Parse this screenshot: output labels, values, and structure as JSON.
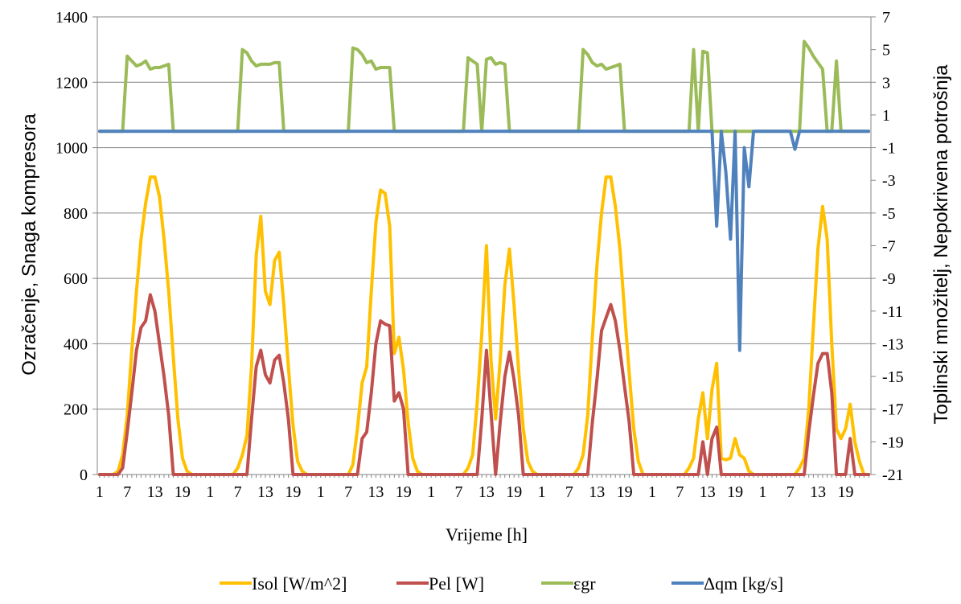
{
  "chart_data": {
    "type": "line",
    "xlabel": "Vrijeme [h]",
    "ylabel_left": "Ozračenje, Snaga kompresora",
    "ylabel_right": "Toplinski množitelj, Nepokrivena potrošnja",
    "ylim_left": [
      0,
      1400
    ],
    "yticks_left": [
      0,
      200,
      400,
      600,
      800,
      1000,
      1200,
      1400
    ],
    "ylim_right": [
      -21,
      7
    ],
    "yticks_right": [
      -21,
      -19,
      -17,
      -15,
      -13,
      -11,
      -9,
      -7,
      -5,
      -3,
      -1,
      1,
      3,
      5,
      7
    ],
    "xtick_labels": [
      "1",
      "7",
      "13",
      "19",
      "1",
      "7",
      "13",
      "19",
      "1",
      "7",
      "13",
      "19",
      "1",
      "7",
      "13",
      "19",
      "1",
      "7",
      "13",
      "19",
      "1",
      "7",
      "13",
      "19",
      "1",
      "7",
      "13",
      "19"
    ],
    "x_hours": 168,
    "grid": "horizontal",
    "legend_position": "bottom",
    "series": [
      {
        "name": "Isol [W/m^2]",
        "color": "#FFC000",
        "axis": "left",
        "points": [
          [
            1,
            0
          ],
          [
            4,
            0
          ],
          [
            5,
            10
          ],
          [
            6,
            60
          ],
          [
            7,
            180
          ],
          [
            8,
            380
          ],
          [
            9,
            560
          ],
          [
            10,
            720
          ],
          [
            11,
            830
          ],
          [
            12,
            910
          ],
          [
            13,
            910
          ],
          [
            14,
            850
          ],
          [
            15,
            720
          ],
          [
            16,
            560
          ],
          [
            17,
            360
          ],
          [
            18,
            170
          ],
          [
            19,
            50
          ],
          [
            20,
            10
          ],
          [
            21,
            0
          ],
          [
            30,
            0
          ],
          [
            31,
            20
          ],
          [
            32,
            60
          ],
          [
            33,
            120
          ],
          [
            34,
            330
          ],
          [
            35,
            670
          ],
          [
            36,
            790
          ],
          [
            37,
            560
          ],
          [
            38,
            520
          ],
          [
            39,
            655
          ],
          [
            40,
            680
          ],
          [
            41,
            520
          ],
          [
            42,
            330
          ],
          [
            43,
            150
          ],
          [
            44,
            40
          ],
          [
            45,
            10
          ],
          [
            46,
            0
          ],
          [
            55,
            0
          ],
          [
            56,
            30
          ],
          [
            57,
            140
          ],
          [
            58,
            280
          ],
          [
            59,
            330
          ],
          [
            60,
            560
          ],
          [
            61,
            770
          ],
          [
            62,
            870
          ],
          [
            63,
            860
          ],
          [
            64,
            760
          ],
          [
            65,
            370
          ],
          [
            66,
            420
          ],
          [
            67,
            320
          ],
          [
            68,
            160
          ],
          [
            69,
            50
          ],
          [
            70,
            10
          ],
          [
            71,
            0
          ],
          [
            80,
            0
          ],
          [
            81,
            20
          ],
          [
            82,
            60
          ],
          [
            83,
            220
          ],
          [
            84,
            430
          ],
          [
            85,
            700
          ],
          [
            86,
            350
          ],
          [
            87,
            170
          ],
          [
            88,
            350
          ],
          [
            89,
            580
          ],
          [
            90,
            690
          ],
          [
            91,
            520
          ],
          [
            92,
            320
          ],
          [
            93,
            140
          ],
          [
            94,
            40
          ],
          [
            95,
            10
          ],
          [
            96,
            0
          ],
          [
            104,
            0
          ],
          [
            105,
            20
          ],
          [
            106,
            60
          ],
          [
            107,
            180
          ],
          [
            108,
            420
          ],
          [
            109,
            640
          ],
          [
            110,
            800
          ],
          [
            111,
            910
          ],
          [
            112,
            910
          ],
          [
            113,
            820
          ],
          [
            114,
            690
          ],
          [
            115,
            500
          ],
          [
            116,
            310
          ],
          [
            117,
            140
          ],
          [
            118,
            40
          ],
          [
            119,
            0
          ],
          [
            128,
            0
          ],
          [
            129,
            20
          ],
          [
            130,
            50
          ],
          [
            131,
            170
          ],
          [
            132,
            250
          ],
          [
            133,
            110
          ],
          [
            134,
            260
          ],
          [
            135,
            340
          ],
          [
            136,
            50
          ],
          [
            137,
            45
          ],
          [
            138,
            50
          ],
          [
            139,
            110
          ],
          [
            140,
            60
          ],
          [
            141,
            50
          ],
          [
            142,
            10
          ],
          [
            143,
            0
          ],
          [
            152,
            0
          ],
          [
            153,
            20
          ],
          [
            154,
            50
          ],
          [
            155,
            200
          ],
          [
            156,
            450
          ],
          [
            157,
            690
          ],
          [
            158,
            820
          ],
          [
            159,
            720
          ],
          [
            160,
            400
          ],
          [
            161,
            140
          ],
          [
            162,
            110
          ],
          [
            163,
            140
          ],
          [
            164,
            215
          ],
          [
            165,
            100
          ],
          [
            166,
            40
          ],
          [
            167,
            0
          ],
          [
            168,
            0
          ]
        ]
      },
      {
        "name": "Pel [W]",
        "color": "#C0504D",
        "axis": "left",
        "points": [
          [
            1,
            0
          ],
          [
            5,
            0
          ],
          [
            6,
            20
          ],
          [
            7,
            130
          ],
          [
            8,
            250
          ],
          [
            9,
            380
          ],
          [
            10,
            450
          ],
          [
            11,
            470
          ],
          [
            12,
            550
          ],
          [
            13,
            500
          ],
          [
            14,
            400
          ],
          [
            15,
            300
          ],
          [
            16,
            180
          ],
          [
            17,
            0
          ],
          [
            33,
            0
          ],
          [
            34,
            170
          ],
          [
            35,
            330
          ],
          [
            36,
            380
          ],
          [
            37,
            305
          ],
          [
            38,
            280
          ],
          [
            39,
            350
          ],
          [
            40,
            365
          ],
          [
            41,
            280
          ],
          [
            42,
            170
          ],
          [
            43,
            0
          ],
          [
            57,
            0
          ],
          [
            58,
            110
          ],
          [
            59,
            130
          ],
          [
            60,
            250
          ],
          [
            61,
            400
          ],
          [
            62,
            470
          ],
          [
            63,
            460
          ],
          [
            64,
            455
          ],
          [
            65,
            225
          ],
          [
            66,
            250
          ],
          [
            67,
            200
          ],
          [
            68,
            0
          ],
          [
            83,
            0
          ],
          [
            84,
            170
          ],
          [
            85,
            380
          ],
          [
            86,
            190
          ],
          [
            87,
            0
          ],
          [
            88,
            160
          ],
          [
            89,
            300
          ],
          [
            90,
            375
          ],
          [
            91,
            290
          ],
          [
            92,
            180
          ],
          [
            93,
            0
          ],
          [
            107,
            0
          ],
          [
            108,
            160
          ],
          [
            109,
            290
          ],
          [
            110,
            440
          ],
          [
            111,
            480
          ],
          [
            112,
            520
          ],
          [
            113,
            470
          ],
          [
            114,
            380
          ],
          [
            115,
            270
          ],
          [
            116,
            160
          ],
          [
            117,
            0
          ],
          [
            131,
            0
          ],
          [
            132,
            100
          ],
          [
            133,
            0
          ],
          [
            134,
            110
          ],
          [
            135,
            145
          ],
          [
            136,
            0
          ],
          [
            154,
            0
          ],
          [
            155,
            130
          ],
          [
            156,
            240
          ],
          [
            157,
            340
          ],
          [
            158,
            370
          ],
          [
            159,
            370
          ],
          [
            160,
            250
          ],
          [
            161,
            0
          ],
          [
            163,
            0
          ],
          [
            164,
            110
          ],
          [
            165,
            0
          ],
          [
            168,
            0
          ]
        ]
      },
      {
        "name": "εgr",
        "color": "#9BBB59",
        "axis": "right",
        "points": [
          [
            1,
            0
          ],
          [
            6,
            0
          ],
          [
            7,
            4.6
          ],
          [
            8,
            4.3
          ],
          [
            9,
            4
          ],
          [
            10,
            4.1
          ],
          [
            11,
            4.3
          ],
          [
            12,
            3.8
          ],
          [
            13,
            3.9
          ],
          [
            14,
            3.9
          ],
          [
            15,
            4
          ],
          [
            16,
            4.1
          ],
          [
            17,
            0
          ],
          [
            31,
            0
          ],
          [
            32,
            5
          ],
          [
            33,
            4.8
          ],
          [
            34,
            4.3
          ],
          [
            35,
            4
          ],
          [
            36,
            4.1
          ],
          [
            37,
            4.1
          ],
          [
            38,
            4.1
          ],
          [
            39,
            4.2
          ],
          [
            40,
            4.2
          ],
          [
            41,
            0
          ],
          [
            55,
            0
          ],
          [
            56,
            5.1
          ],
          [
            57,
            5.0
          ],
          [
            58,
            4.7
          ],
          [
            59,
            4.2
          ],
          [
            60,
            4.3
          ],
          [
            61,
            3.8
          ],
          [
            62,
            3.9
          ],
          [
            63,
            3.9
          ],
          [
            64,
            3.9
          ],
          [
            65,
            0
          ],
          [
            80,
            0
          ],
          [
            81,
            4.5
          ],
          [
            82,
            4.3
          ],
          [
            83,
            4.1
          ],
          [
            84,
            0
          ],
          [
            85,
            4.4
          ],
          [
            86,
            4.5
          ],
          [
            87,
            4.1
          ],
          [
            88,
            4.2
          ],
          [
            89,
            4.1
          ],
          [
            90,
            0
          ],
          [
            105,
            0
          ],
          [
            106,
            5
          ],
          [
            107,
            4.7
          ],
          [
            108,
            4.2
          ],
          [
            109,
            4
          ],
          [
            110,
            4.1
          ],
          [
            111,
            3.8
          ],
          [
            112,
            3.9
          ],
          [
            113,
            4
          ],
          [
            114,
            4.1
          ],
          [
            115,
            0
          ],
          [
            129,
            0
          ],
          [
            130,
            5
          ],
          [
            131,
            0
          ],
          [
            132,
            4.9
          ],
          [
            133,
            4.8
          ],
          [
            134,
            0
          ],
          [
            153,
            0
          ],
          [
            154,
            5.5
          ],
          [
            155,
            5.1
          ],
          [
            156,
            4.6
          ],
          [
            157,
            4.2
          ],
          [
            158,
            3.8
          ],
          [
            159,
            0
          ],
          [
            160,
            0
          ],
          [
            161,
            4.3
          ],
          [
            162,
            0
          ],
          [
            168,
            0
          ]
        ]
      },
      {
        "name": "Δqm [kg/s]",
        "color": "#4F81BD",
        "axis": "right",
        "points": [
          [
            1,
            0
          ],
          [
            134,
            0
          ],
          [
            135,
            -5.8
          ],
          [
            136,
            0
          ],
          [
            137,
            -2.5
          ],
          [
            138,
            -6.6
          ],
          [
            139,
            0
          ],
          [
            140,
            -13.4
          ],
          [
            141,
            -1
          ],
          [
            142,
            -3.4
          ],
          [
            143,
            0
          ],
          [
            151,
            0
          ],
          [
            152,
            -1.1
          ],
          [
            153,
            0
          ],
          [
            168,
            0
          ]
        ]
      }
    ]
  }
}
